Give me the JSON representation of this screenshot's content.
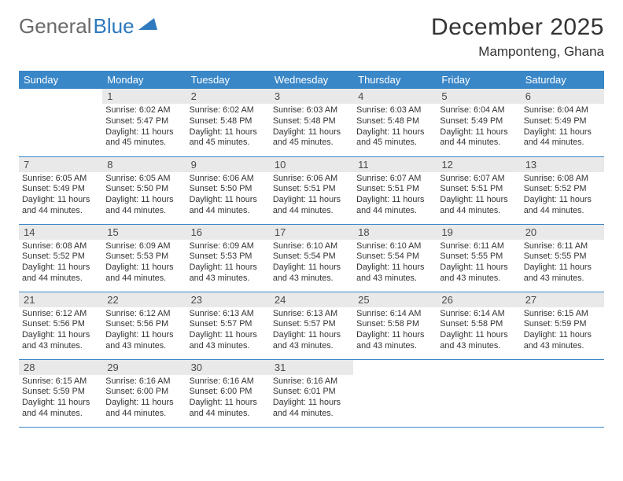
{
  "brand": {
    "part1": "General",
    "part2": "Blue"
  },
  "title": "December 2025",
  "location": "Mamponteng, Ghana",
  "colors": {
    "header_bg": "#3a87c8",
    "header_text": "#ffffff",
    "daynum_bg": "#e9e9e9",
    "row_border": "#3a87c8",
    "brand_gray": "#6a6a6a",
    "brand_blue": "#2f79bf",
    "page_bg": "#ffffff",
    "text": "#333333"
  },
  "fonts": {
    "title_size_pt": 22,
    "location_size_pt": 13,
    "header_cell_size_pt": 10,
    "daynum_size_pt": 10,
    "body_size_pt": 8
  },
  "weekdays": [
    "Sunday",
    "Monday",
    "Tuesday",
    "Wednesday",
    "Thursday",
    "Friday",
    "Saturday"
  ],
  "weeks": [
    [
      null,
      {
        "n": "1",
        "sr": "6:02 AM",
        "ss": "5:47 PM",
        "dl": "11 hours and 45 minutes."
      },
      {
        "n": "2",
        "sr": "6:02 AM",
        "ss": "5:48 PM",
        "dl": "11 hours and 45 minutes."
      },
      {
        "n": "3",
        "sr": "6:03 AM",
        "ss": "5:48 PM",
        "dl": "11 hours and 45 minutes."
      },
      {
        "n": "4",
        "sr": "6:03 AM",
        "ss": "5:48 PM",
        "dl": "11 hours and 45 minutes."
      },
      {
        "n": "5",
        "sr": "6:04 AM",
        "ss": "5:49 PM",
        "dl": "11 hours and 44 minutes."
      },
      {
        "n": "6",
        "sr": "6:04 AM",
        "ss": "5:49 PM",
        "dl": "11 hours and 44 minutes."
      }
    ],
    [
      {
        "n": "7",
        "sr": "6:05 AM",
        "ss": "5:49 PM",
        "dl": "11 hours and 44 minutes."
      },
      {
        "n": "8",
        "sr": "6:05 AM",
        "ss": "5:50 PM",
        "dl": "11 hours and 44 minutes."
      },
      {
        "n": "9",
        "sr": "6:06 AM",
        "ss": "5:50 PM",
        "dl": "11 hours and 44 minutes."
      },
      {
        "n": "10",
        "sr": "6:06 AM",
        "ss": "5:51 PM",
        "dl": "11 hours and 44 minutes."
      },
      {
        "n": "11",
        "sr": "6:07 AM",
        "ss": "5:51 PM",
        "dl": "11 hours and 44 minutes."
      },
      {
        "n": "12",
        "sr": "6:07 AM",
        "ss": "5:51 PM",
        "dl": "11 hours and 44 minutes."
      },
      {
        "n": "13",
        "sr": "6:08 AM",
        "ss": "5:52 PM",
        "dl": "11 hours and 44 minutes."
      }
    ],
    [
      {
        "n": "14",
        "sr": "6:08 AM",
        "ss": "5:52 PM",
        "dl": "11 hours and 44 minutes."
      },
      {
        "n": "15",
        "sr": "6:09 AM",
        "ss": "5:53 PM",
        "dl": "11 hours and 44 minutes."
      },
      {
        "n": "16",
        "sr": "6:09 AM",
        "ss": "5:53 PM",
        "dl": "11 hours and 43 minutes."
      },
      {
        "n": "17",
        "sr": "6:10 AM",
        "ss": "5:54 PM",
        "dl": "11 hours and 43 minutes."
      },
      {
        "n": "18",
        "sr": "6:10 AM",
        "ss": "5:54 PM",
        "dl": "11 hours and 43 minutes."
      },
      {
        "n": "19",
        "sr": "6:11 AM",
        "ss": "5:55 PM",
        "dl": "11 hours and 43 minutes."
      },
      {
        "n": "20",
        "sr": "6:11 AM",
        "ss": "5:55 PM",
        "dl": "11 hours and 43 minutes."
      }
    ],
    [
      {
        "n": "21",
        "sr": "6:12 AM",
        "ss": "5:56 PM",
        "dl": "11 hours and 43 minutes."
      },
      {
        "n": "22",
        "sr": "6:12 AM",
        "ss": "5:56 PM",
        "dl": "11 hours and 43 minutes."
      },
      {
        "n": "23",
        "sr": "6:13 AM",
        "ss": "5:57 PM",
        "dl": "11 hours and 43 minutes."
      },
      {
        "n": "24",
        "sr": "6:13 AM",
        "ss": "5:57 PM",
        "dl": "11 hours and 43 minutes."
      },
      {
        "n": "25",
        "sr": "6:14 AM",
        "ss": "5:58 PM",
        "dl": "11 hours and 43 minutes."
      },
      {
        "n": "26",
        "sr": "6:14 AM",
        "ss": "5:58 PM",
        "dl": "11 hours and 43 minutes."
      },
      {
        "n": "27",
        "sr": "6:15 AM",
        "ss": "5:59 PM",
        "dl": "11 hours and 43 minutes."
      }
    ],
    [
      {
        "n": "28",
        "sr": "6:15 AM",
        "ss": "5:59 PM",
        "dl": "11 hours and 44 minutes."
      },
      {
        "n": "29",
        "sr": "6:16 AM",
        "ss": "6:00 PM",
        "dl": "11 hours and 44 minutes."
      },
      {
        "n": "30",
        "sr": "6:16 AM",
        "ss": "6:00 PM",
        "dl": "11 hours and 44 minutes."
      },
      {
        "n": "31",
        "sr": "6:16 AM",
        "ss": "6:01 PM",
        "dl": "11 hours and 44 minutes."
      },
      null,
      null,
      null
    ]
  ],
  "labels": {
    "sunrise": "Sunrise:",
    "sunset": "Sunset:",
    "daylight": "Daylight:"
  }
}
